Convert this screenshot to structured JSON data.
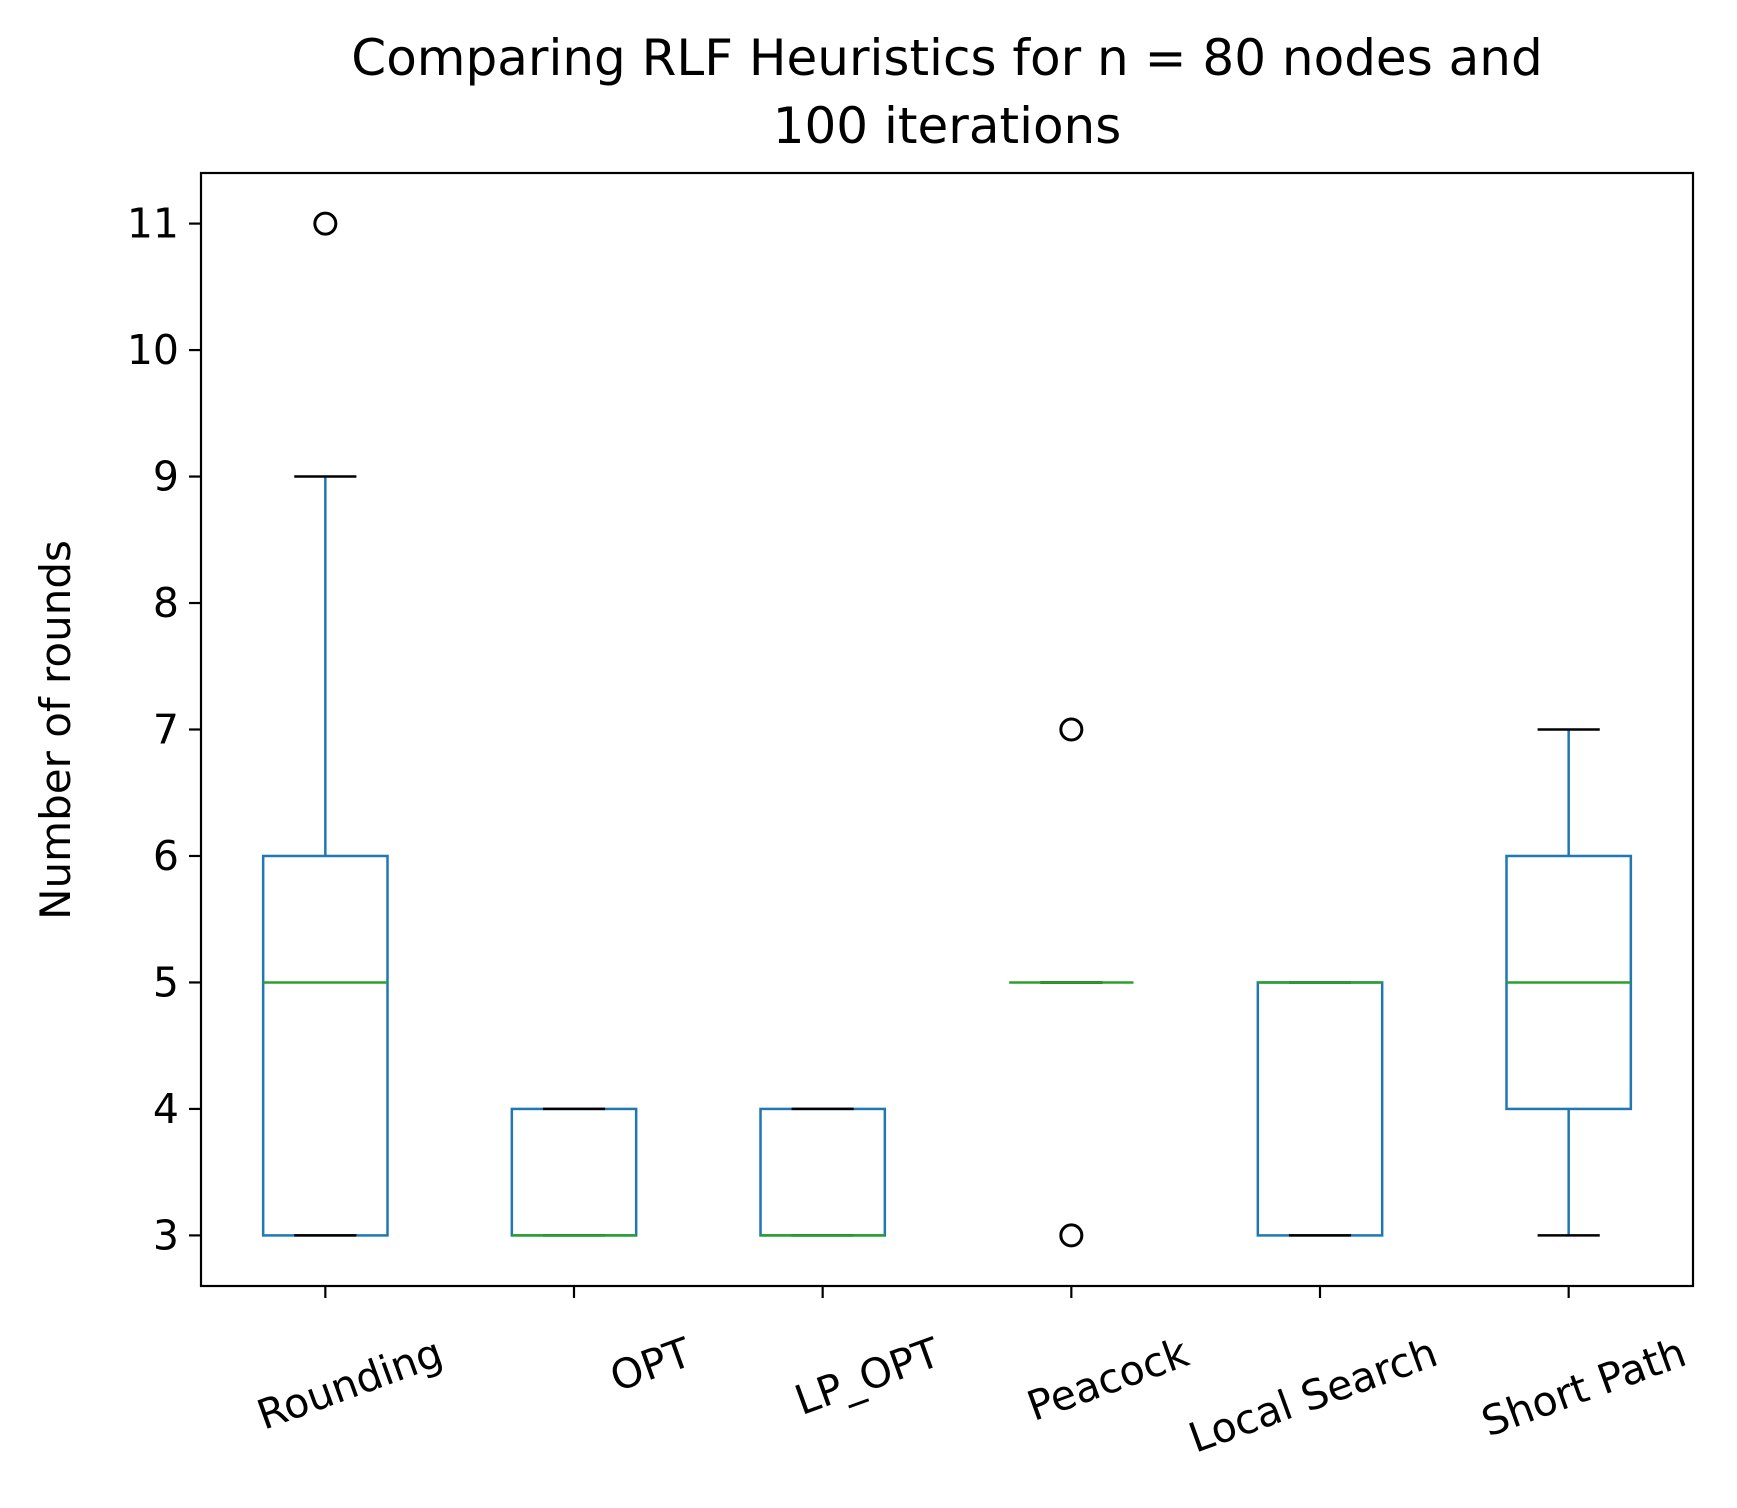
{
  "chart_data": {
    "type": "box",
    "title": "Comparing RLF Heuristics for n = 80 nodes and\n100 iterations",
    "xlabel": "",
    "ylabel": "Number of rounds",
    "ylim": [
      2.6,
      11.4
    ],
    "yticks": [
      3,
      4,
      5,
      6,
      7,
      8,
      9,
      10,
      11
    ],
    "grid": false,
    "categories": [
      "Rounding",
      "OPT",
      "LP_OPT",
      "Peacock",
      "Local Search",
      "Short Path"
    ],
    "boxes": [
      {
        "label": "Rounding",
        "whisker_low": 3,
        "q1": 3,
        "median": 5,
        "q3": 6,
        "whisker_high": 9,
        "outliers": [
          11
        ]
      },
      {
        "label": "OPT",
        "whisker_low": 3,
        "q1": 3,
        "median": 3,
        "q3": 4,
        "whisker_high": 4,
        "outliers": []
      },
      {
        "label": "LP_OPT",
        "whisker_low": 3,
        "q1": 3,
        "median": 3,
        "q3": 4,
        "whisker_high": 4,
        "outliers": []
      },
      {
        "label": "Peacock",
        "whisker_low": 5,
        "q1": 5,
        "median": 5,
        "q3": 5,
        "whisker_high": 5,
        "outliers": [
          3,
          7
        ]
      },
      {
        "label": "Local Search",
        "whisker_low": 3,
        "q1": 3,
        "median": 5,
        "q3": 5,
        "whisker_high": 5,
        "outliers": []
      },
      {
        "label": "Short Path",
        "whisker_low": 3,
        "q1": 4,
        "median": 5,
        "q3": 6,
        "whisker_high": 7,
        "outliers": []
      }
    ],
    "colors": {
      "box": "#1f77b4",
      "median": "#2ca02c",
      "cap": "#000000",
      "outlier": "#000000"
    }
  }
}
